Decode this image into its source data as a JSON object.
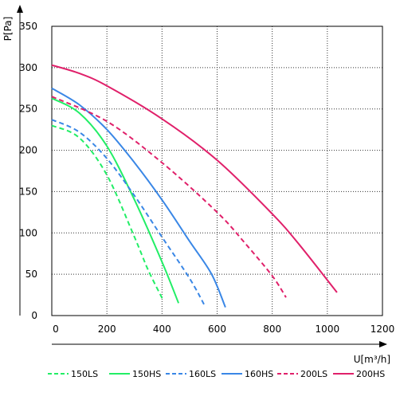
{
  "chart_data": {
    "type": "line",
    "xlabel": "U[m³/h]",
    "ylabel": "P[Pa]",
    "xlim": [
      0,
      1200
    ],
    "ylim": [
      0,
      350
    ],
    "x_ticks": [
      0,
      200,
      400,
      600,
      800,
      1000,
      1200
    ],
    "y_ticks": [
      0,
      50,
      100,
      150,
      200,
      250,
      300,
      350
    ],
    "grid": "dotted",
    "legend_position": "bottom",
    "series": [
      {
        "name": "150LS",
        "color": "#22ee66",
        "dash": "dashed",
        "x": [
          0,
          100,
          200,
          300,
          350,
          405
        ],
        "y": [
          230,
          215,
          170,
          95,
          55,
          18
        ]
      },
      {
        "name": "150HS",
        "color": "#22ee66",
        "dash": "solid",
        "x": [
          0,
          100,
          200,
          300,
          400,
          460
        ],
        "y": [
          263,
          245,
          205,
          140,
          65,
          15
        ]
      },
      {
        "name": "160LS",
        "color": "#3a87e6",
        "dash": "dashed",
        "x": [
          0,
          100,
          200,
          300,
          400,
          500,
          555
        ],
        "y": [
          237,
          222,
          190,
          145,
          95,
          45,
          12
        ]
      },
      {
        "name": "160HS",
        "color": "#3a87e6",
        "dash": "solid",
        "x": [
          0,
          100,
          200,
          300,
          400,
          500,
          580,
          630
        ],
        "y": [
          275,
          255,
          225,
          185,
          140,
          90,
          50,
          10
        ]
      },
      {
        "name": "200LS",
        "color": "#e0206a",
        "dash": "dashed",
        "x": [
          0,
          200,
          400,
          600,
          700,
          800,
          850
        ],
        "y": [
          265,
          235,
          185,
          125,
          88,
          48,
          22
        ]
      },
      {
        "name": "200HS",
        "color": "#e0206a",
        "dash": "solid",
        "x": [
          0,
          100,
          200,
          400,
          600,
          800,
          900,
          1035
        ],
        "y": [
          303,
          293,
          278,
          238,
          188,
          123,
          85,
          28
        ]
      }
    ]
  }
}
